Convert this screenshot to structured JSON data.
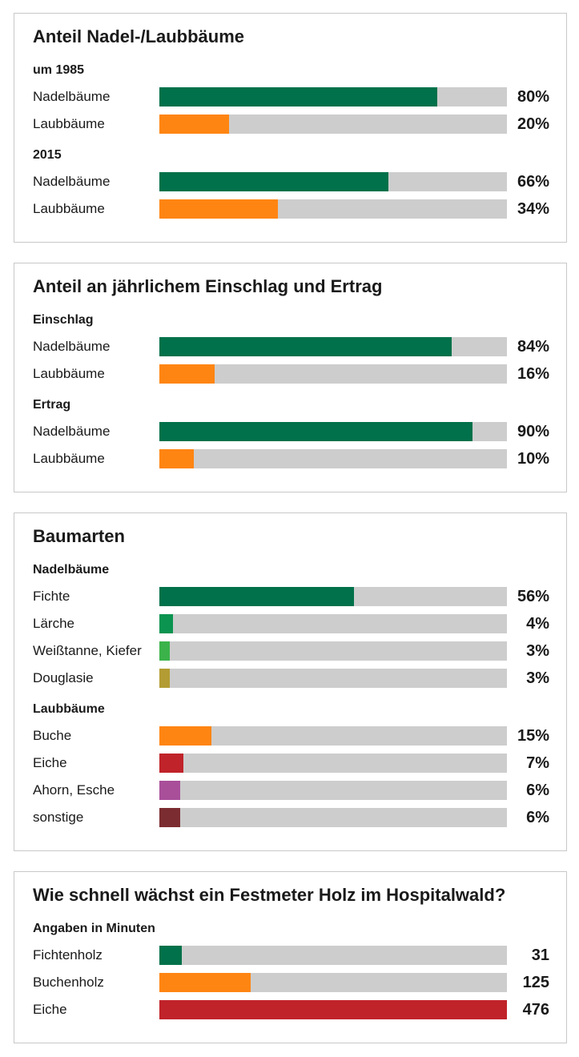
{
  "chart_data": {
    "type": "bar",
    "panels": [
      {
        "title": "Anteil Nadel-/Laubbäume",
        "max": 100,
        "unit": "%",
        "groups": [
          {
            "heading": "um 1985",
            "rows": [
              {
                "label": "Nadelbäume",
                "value": 80,
                "display": "80%",
                "color": "#00714a"
              },
              {
                "label": "Laubbäume",
                "value": 20,
                "display": "20%",
                "color": "#ff8512"
              }
            ]
          },
          {
            "heading": "2015",
            "rows": [
              {
                "label": "Nadelbäume",
                "value": 66,
                "display": "66%",
                "color": "#00714a"
              },
              {
                "label": "Laubbäume",
                "value": 34,
                "display": "34%",
                "color": "#ff8512"
              }
            ]
          }
        ]
      },
      {
        "title": "Anteil an jährlichem Einschlag und Ertrag",
        "max": 100,
        "unit": "%",
        "groups": [
          {
            "heading": "Einschlag",
            "rows": [
              {
                "label": "Nadelbäume",
                "value": 84,
                "display": "84%",
                "color": "#00714a"
              },
              {
                "label": "Laubbäume",
                "value": 16,
                "display": "16%",
                "color": "#ff8512"
              }
            ]
          },
          {
            "heading": "Ertrag",
            "rows": [
              {
                "label": "Nadelbäume",
                "value": 90,
                "display": "90%",
                "color": "#00714a"
              },
              {
                "label": "Laubbäume",
                "value": 10,
                "display": "10%",
                "color": "#ff8512"
              }
            ]
          }
        ]
      },
      {
        "title": "Baumarten",
        "max": 100,
        "unit": "%",
        "groups": [
          {
            "heading": "Nadelbäume",
            "rows": [
              {
                "label": "Fichte",
                "value": 56,
                "display": "56%",
                "color": "#00714a"
              },
              {
                "label": "Lärche",
                "value": 4,
                "display": "4%",
                "color": "#0a9450"
              },
              {
                "label": "Weißtanne, Kiefer",
                "value": 3,
                "display": "3%",
                "color": "#3bb34a"
              },
              {
                "label": "Douglasie",
                "value": 3,
                "display": "3%",
                "color": "#b39c33"
              }
            ]
          },
          {
            "heading": "Laubbäume",
            "rows": [
              {
                "label": "Buche",
                "value": 15,
                "display": "15%",
                "color": "#ff8512"
              },
              {
                "label": "Eiche",
                "value": 7,
                "display": "7%",
                "color": "#c0232a"
              },
              {
                "label": "Ahorn, Esche",
                "value": 6,
                "display": "6%",
                "color": "#a94f9a"
              },
              {
                "label": "sonstige",
                "value": 6,
                "display": "6%",
                "color": "#7b2c30"
              }
            ]
          }
        ]
      },
      {
        "title": "Wie schnell wächst ein Festmeter Holz im Hospitalwald?",
        "max": 476,
        "unit": "Minuten",
        "groups": [
          {
            "heading": "Angaben in Minuten",
            "rows": [
              {
                "label": "Fichtenholz",
                "value": 31,
                "display": "31",
                "color": "#00714a"
              },
              {
                "label": "Buchenholz",
                "value": 125,
                "display": "125",
                "color": "#ff8512"
              },
              {
                "label": "Eiche",
                "value": 476,
                "display": "476",
                "color": "#c0232a"
              }
            ]
          }
        ]
      }
    ]
  }
}
